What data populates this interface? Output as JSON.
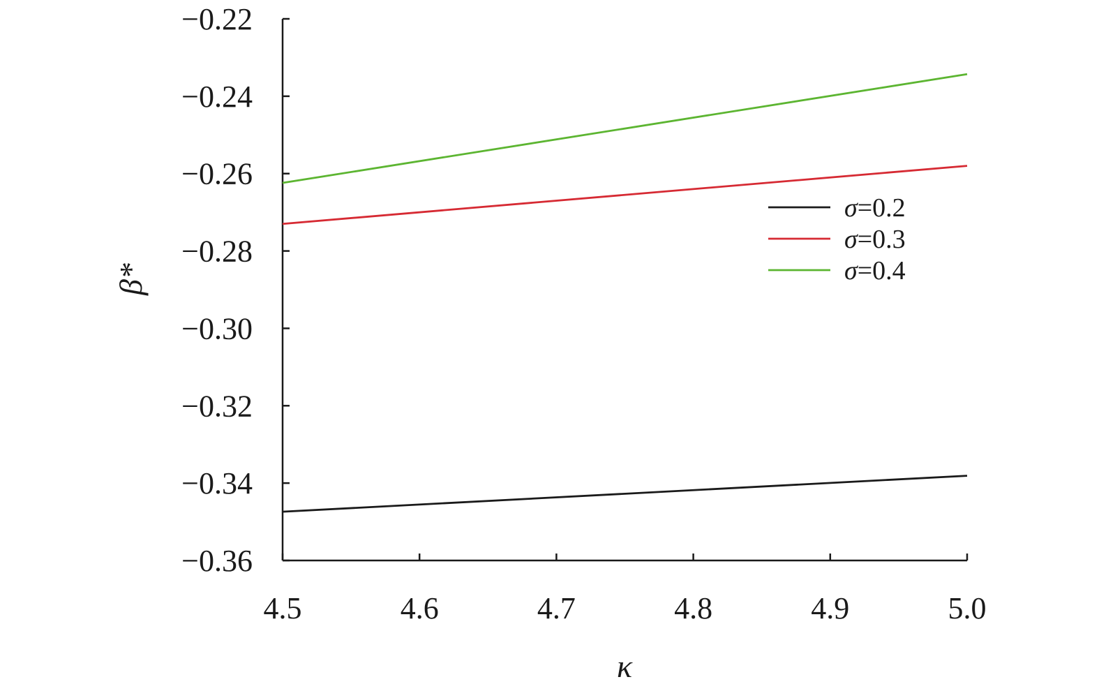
{
  "chart_data": {
    "type": "line",
    "xlabel": "κ",
    "ylabel": "β*",
    "xlim": [
      4.5,
      5.0
    ],
    "ylim": [
      -0.36,
      -0.22
    ],
    "xticks": [
      "4.5",
      "4.6",
      "4.7",
      "4.8",
      "4.9",
      "5.0"
    ],
    "yticks": [
      "−0.22",
      "−0.24",
      "−0.26",
      "−0.28",
      "−0.30",
      "−0.32",
      "−0.34",
      "−0.36"
    ],
    "grid": false,
    "legend_position": "right",
    "x": [
      4.5,
      5.0
    ],
    "series": [
      {
        "name": "σ=0.2",
        "symbol": "σ",
        "value_text": "=0.2",
        "color": "#1a1a1a",
        "values": [
          -0.3474,
          -0.3381
        ]
      },
      {
        "name": "σ=0.3",
        "symbol": "σ",
        "value_text": "=0.3",
        "color": "#d62a33",
        "values": [
          -0.273,
          -0.258
        ]
      },
      {
        "name": "σ=0.4",
        "symbol": "σ",
        "value_text": "=0.4",
        "color": "#5cb531",
        "values": [
          -0.2624,
          -0.2343
        ]
      }
    ]
  }
}
